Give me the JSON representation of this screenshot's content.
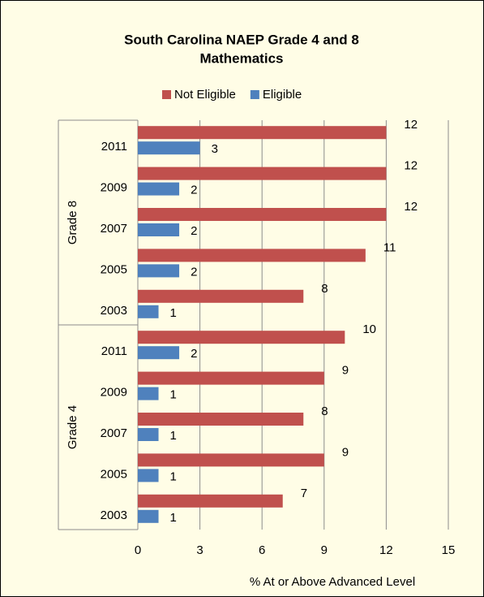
{
  "chart_data": {
    "type": "bar",
    "orientation": "horizontal",
    "title": [
      "South Carolina NAEP Grade 4 and 8",
      "Mathematics"
    ],
    "x_label": "% At or Above Advanced Level",
    "groups": [
      {
        "label": "Grade 8",
        "categories": [
          "2011",
          "2009",
          "2007",
          "2005",
          "2003"
        ]
      },
      {
        "label": "Grade 4",
        "categories": [
          "2011",
          "2009",
          "2007",
          "2005",
          "2003"
        ]
      }
    ],
    "series": [
      {
        "name": "Not Eligible",
        "color": "#c0504d",
        "values": [
          12,
          12,
          12,
          11,
          8,
          10,
          9,
          8,
          9,
          7
        ]
      },
      {
        "name": "Eligible",
        "color": "#4f81bd",
        "values": [
          3,
          2,
          2,
          2,
          1,
          2,
          1,
          1,
          1,
          1
        ]
      }
    ],
    "xlim": [
      0,
      15
    ],
    "xticks": [
      0,
      3,
      6,
      9,
      12,
      15
    ],
    "grid": true,
    "legend": "top"
  }
}
